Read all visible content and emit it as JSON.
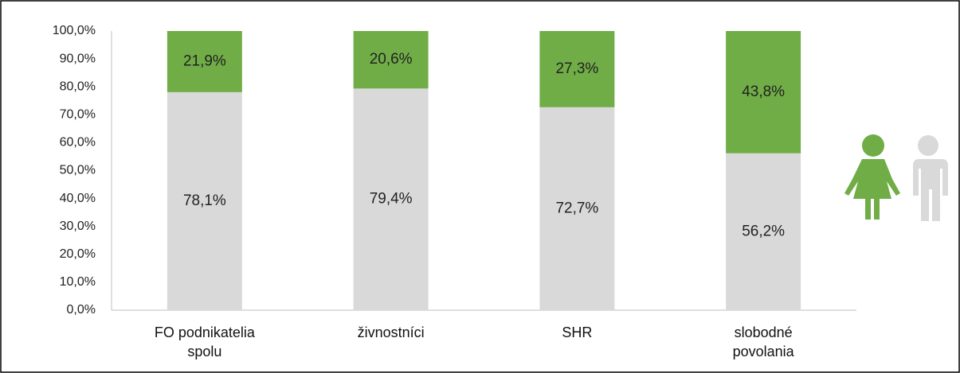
{
  "chart_data": {
    "type": "stacked_bar",
    "categories": [
      "FO podnikatelia spolu",
      "živnostníci",
      "SHR",
      "slobodné povolania"
    ],
    "series": [
      {
        "color": "#d9d9d9",
        "values": [
          78.1,
          79.4,
          72.7,
          56.2
        ],
        "value_labels": [
          "78,1%",
          "79,4%",
          "72,7%",
          "56,2%"
        ]
      },
      {
        "color": "#70ad47",
        "values": [
          21.9,
          20.6,
          27.3,
          43.8
        ],
        "value_labels": [
          "21,9%",
          "20,6%",
          "27,3%",
          "43,8%"
        ]
      }
    ],
    "ylim": [
      0,
      100
    ],
    "yticks": [
      {
        "value": 0,
        "label": "0,0%"
      },
      {
        "value": 10,
        "label": "10,0%"
      },
      {
        "value": 20,
        "label": "20,0%"
      },
      {
        "value": 30,
        "label": "30,0%"
      },
      {
        "value": 40,
        "label": "40,0%"
      },
      {
        "value": 50,
        "label": "50,0%"
      },
      {
        "value": 60,
        "label": "60,0%"
      },
      {
        "value": 70,
        "label": "70,0%"
      },
      {
        "value": 80,
        "label": "80,0%"
      },
      {
        "value": 90,
        "label": "90,0%"
      },
      {
        "value": 100,
        "label": "100,0%"
      }
    ]
  }
}
